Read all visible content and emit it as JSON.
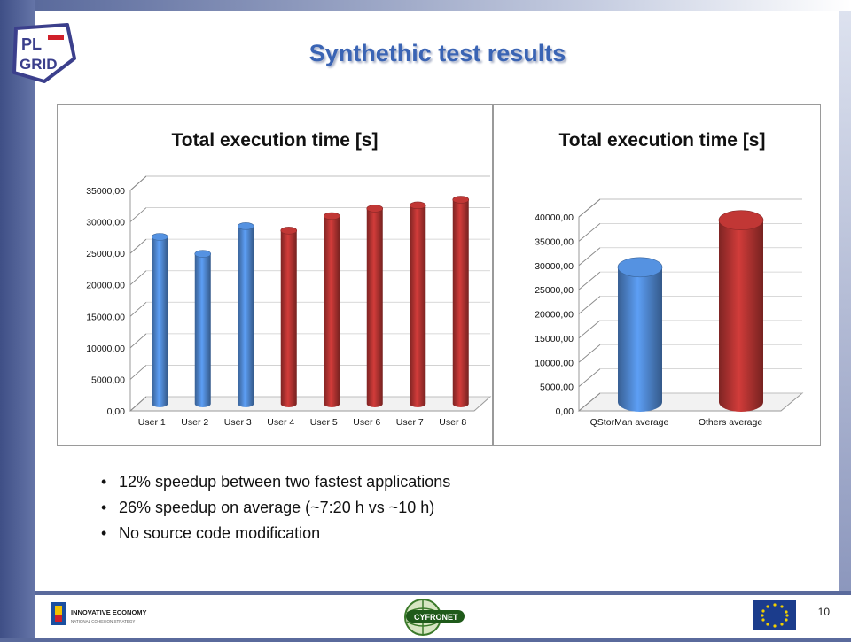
{
  "slide": {
    "title": "Synthethic test results",
    "page_number": "10",
    "bullets": [
      "12% speedup between two fastest applications",
      "26% speedup on average (~7:20 h vs ~10 h)",
      "No source code modification"
    ],
    "logo_text_top": "PL",
    "logo_text_bottom": "GRID",
    "footer_left_title": "INNOVATIVE ECONOMY",
    "footer_left_subtitle": "NATIONAL COHESION STRATEGY",
    "footer_center": "CYFRONET"
  },
  "colors": {
    "blue": "#4a7fc4",
    "red": "#a8302e",
    "title": "#3a64b4"
  },
  "chart_data": [
    {
      "type": "bar",
      "title": "Total execution time [s]",
      "categories": [
        "User 1",
        "User 2",
        "User 3",
        "User 4",
        "User 5",
        "User 6",
        "User 7",
        "User 8"
      ],
      "values": [
        26500,
        23800,
        28200,
        27500,
        29800,
        31000,
        31500,
        32400
      ],
      "bar_colors": [
        "blue",
        "blue",
        "blue",
        "red",
        "red",
        "red",
        "red",
        "red"
      ],
      "ylim": [
        0,
        35000
      ],
      "yticks": [
        "0,00",
        "5000,00",
        "10000,00",
        "15000,00",
        "20000,00",
        "25000,00",
        "30000,00",
        "35000,00"
      ],
      "grid": true
    },
    {
      "type": "bar",
      "title": "Total execution time [s]",
      "categories": [
        "QStorMan average",
        "Others average"
      ],
      "values": [
        27800,
        37500
      ],
      "bar_colors": [
        "blue",
        "red"
      ],
      "ylim": [
        0,
        40000
      ],
      "yticks": [
        "0,00",
        "5000,00",
        "10000,00",
        "15000,00",
        "20000,00",
        "25000,00",
        "30000,00",
        "35000,00",
        "40000,00"
      ],
      "grid": true
    }
  ]
}
